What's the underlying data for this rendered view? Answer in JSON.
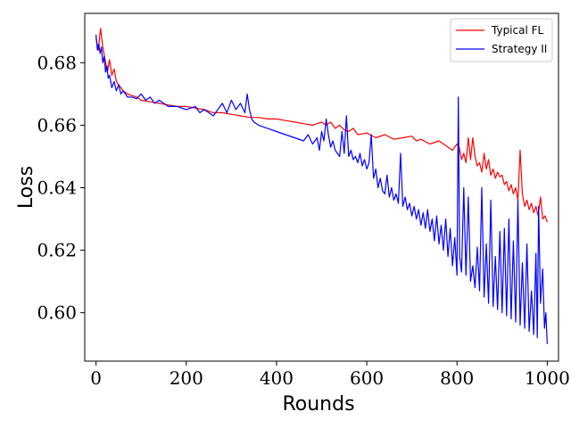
{
  "chart_data": {
    "type": "line",
    "title": "",
    "xlabel": "Rounds",
    "ylabel": "Loss",
    "xlim": [
      -25,
      1025
    ],
    "ylim": [
      0.5845,
      0.6958
    ],
    "xticks": [
      0,
      200,
      400,
      600,
      800,
      1000
    ],
    "yticks": [
      0.6,
      0.62,
      0.64,
      0.66,
      0.68
    ],
    "xtick_labels": [
      "0",
      "200",
      "400",
      "600",
      "800",
      "1000"
    ],
    "ytick_labels": [
      "0.60",
      "0.62",
      "0.64",
      "0.66",
      "0.68"
    ],
    "grid": false,
    "legend_position": "top-right",
    "series": [
      {
        "name": "Typical FL",
        "color": "#ff0000",
        "x": [
          0,
          5,
          10,
          15,
          20,
          25,
          30,
          35,
          40,
          45,
          50,
          55,
          60,
          70,
          80,
          90,
          100,
          120,
          140,
          160,
          180,
          200,
          220,
          240,
          260,
          280,
          300,
          320,
          340,
          360,
          380,
          400,
          420,
          440,
          460,
          480,
          500,
          510,
          520,
          530,
          540,
          550,
          560,
          570,
          580,
          600,
          620,
          640,
          660,
          680,
          700,
          710,
          720,
          740,
          760,
          780,
          790,
          800,
          805,
          810,
          815,
          820,
          825,
          830,
          835,
          840,
          845,
          850,
          855,
          860,
          865,
          870,
          875,
          880,
          885,
          890,
          895,
          900,
          905,
          910,
          915,
          920,
          925,
          930,
          935,
          940,
          945,
          950,
          955,
          960,
          965,
          970,
          975,
          980,
          985,
          990,
          995,
          1000
        ],
        "y": [
          0.688,
          0.684,
          0.691,
          0.685,
          0.681,
          0.677,
          0.681,
          0.676,
          0.678,
          0.674,
          0.673,
          0.672,
          0.671,
          0.67,
          0.6695,
          0.669,
          0.668,
          0.6675,
          0.667,
          0.6665,
          0.666,
          0.666,
          0.6655,
          0.665,
          0.664,
          0.664,
          0.6635,
          0.663,
          0.6625,
          0.6625,
          0.662,
          0.662,
          0.6615,
          0.661,
          0.6605,
          0.66,
          0.661,
          0.66,
          0.661,
          0.659,
          0.66,
          0.6585,
          0.658,
          0.659,
          0.657,
          0.6575,
          0.656,
          0.657,
          0.6555,
          0.656,
          0.6565,
          0.655,
          0.6555,
          0.654,
          0.655,
          0.653,
          0.652,
          0.654,
          0.653,
          0.649,
          0.651,
          0.648,
          0.656,
          0.649,
          0.656,
          0.65,
          0.647,
          0.648,
          0.645,
          0.651,
          0.646,
          0.649,
          0.644,
          0.646,
          0.643,
          0.645,
          0.6435,
          0.644,
          0.641,
          0.642,
          0.639,
          0.641,
          0.638,
          0.64,
          0.636,
          0.652,
          0.638,
          0.634,
          0.636,
          0.633,
          0.635,
          0.632,
          0.634,
          0.631,
          0.637,
          0.63,
          0.631,
          0.629
        ]
      },
      {
        "name": "Strategy II",
        "color": "#0000ff",
        "x": [
          0,
          3,
          6,
          9,
          12,
          15,
          18,
          21,
          24,
          27,
          30,
          35,
          40,
          45,
          50,
          55,
          60,
          70,
          80,
          90,
          100,
          110,
          120,
          130,
          140,
          150,
          160,
          180,
          200,
          220,
          230,
          240,
          260,
          280,
          290,
          300,
          310,
          320,
          330,
          335,
          340,
          345,
          350,
          360,
          380,
          400,
          420,
          440,
          460,
          470,
          480,
          490,
          495,
          500,
          505,
          510,
          515,
          520,
          525,
          530,
          535,
          540,
          545,
          550,
          555,
          560,
          565,
          570,
          575,
          580,
          585,
          590,
          595,
          600,
          605,
          610,
          615,
          620,
          625,
          630,
          635,
          640,
          645,
          650,
          655,
          660,
          665,
          670,
          675,
          680,
          685,
          690,
          695,
          700,
          705,
          710,
          715,
          720,
          725,
          730,
          735,
          740,
          745,
          750,
          755,
          760,
          765,
          770,
          775,
          780,
          785,
          790,
          795,
          800,
          803,
          806,
          810,
          815,
          820,
          825,
          830,
          835,
          840,
          845,
          850,
          855,
          860,
          865,
          870,
          875,
          880,
          885,
          890,
          895,
          900,
          905,
          910,
          915,
          920,
          925,
          930,
          935,
          940,
          945,
          950,
          955,
          960,
          965,
          970,
          975,
          978,
          981,
          985,
          990,
          994,
          997,
          1000
        ],
        "y": [
          0.689,
          0.684,
          0.686,
          0.683,
          0.685,
          0.68,
          0.682,
          0.677,
          0.679,
          0.675,
          0.676,
          0.672,
          0.674,
          0.671,
          0.673,
          0.67,
          0.671,
          0.669,
          0.669,
          0.6685,
          0.67,
          0.668,
          0.669,
          0.667,
          0.668,
          0.667,
          0.666,
          0.666,
          0.665,
          0.666,
          0.664,
          0.665,
          0.663,
          0.667,
          0.664,
          0.668,
          0.665,
          0.667,
          0.664,
          0.67,
          0.665,
          0.662,
          0.661,
          0.66,
          0.659,
          0.658,
          0.657,
          0.656,
          0.655,
          0.657,
          0.654,
          0.656,
          0.652,
          0.658,
          0.655,
          0.662,
          0.657,
          0.653,
          0.655,
          0.652,
          0.651,
          0.65,
          0.658,
          0.651,
          0.663,
          0.65,
          0.652,
          0.649,
          0.65,
          0.648,
          0.651,
          0.647,
          0.649,
          0.646,
          0.648,
          0.657,
          0.643,
          0.646,
          0.64,
          0.643,
          0.639,
          0.638,
          0.644,
          0.637,
          0.64,
          0.636,
          0.638,
          0.635,
          0.651,
          0.634,
          0.637,
          0.633,
          0.635,
          0.631,
          0.634,
          0.63,
          0.633,
          0.628,
          0.632,
          0.627,
          0.633,
          0.626,
          0.63,
          0.623,
          0.631,
          0.622,
          0.628,
          0.62,
          0.63,
          0.618,
          0.627,
          0.615,
          0.624,
          0.612,
          0.669,
          0.618,
          0.613,
          0.64,
          0.612,
          0.637,
          0.61,
          0.615,
          0.608,
          0.621,
          0.607,
          0.64,
          0.605,
          0.622,
          0.603,
          0.636,
          0.602,
          0.618,
          0.601,
          0.626,
          0.6,
          0.627,
          0.599,
          0.63,
          0.598,
          0.623,
          0.597,
          0.636,
          0.596,
          0.616,
          0.595,
          0.622,
          0.594,
          0.607,
          0.593,
          0.619,
          0.592,
          0.634,
          0.603,
          0.614,
          0.595,
          0.6,
          0.59
        ]
      }
    ]
  }
}
